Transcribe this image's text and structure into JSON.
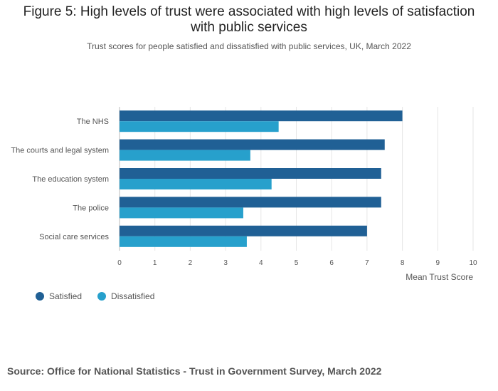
{
  "title_line1": "Figure 5: High levels of trust were associated with high levels of satisfaction",
  "title_line2": "with public services",
  "subtitle": "Trust scores for people satisfied and dissatisfied with public services, UK, March 2022",
  "source": "Source: Office for National Statistics - Trust in Government Survey, March 2022",
  "colors": {
    "satisfied": "#206095",
    "dissatisfied": "#27a0cc",
    "grid": "#e6e6e6",
    "axis_text": "#555555"
  },
  "chart_data": {
    "type": "bar",
    "orientation": "horizontal",
    "title": "Figure 5: High levels of trust were associated with high levels of satisfaction with public services",
    "subtitle": "Trust scores for people satisfied and dissatisfied with public services, UK, March 2022",
    "categories": [
      "The NHS",
      "The courts and legal system",
      "The education system",
      "The police",
      "Social care services"
    ],
    "series": [
      {
        "name": "Satisfied",
        "values": [
          8.0,
          7.5,
          7.4,
          7.4,
          7.0
        ]
      },
      {
        "name": "Dissatisfied",
        "values": [
          4.5,
          3.7,
          4.3,
          3.5,
          3.6
        ]
      }
    ],
    "xlabel": "Mean Trust Score",
    "ylabel": "",
    "xlim": [
      0,
      10
    ],
    "xticks": [
      "0",
      "1",
      "2",
      "3",
      "4",
      "5",
      "6",
      "7",
      "8",
      "9",
      "10"
    ],
    "grid": true,
    "legend": "bottom-left"
  }
}
